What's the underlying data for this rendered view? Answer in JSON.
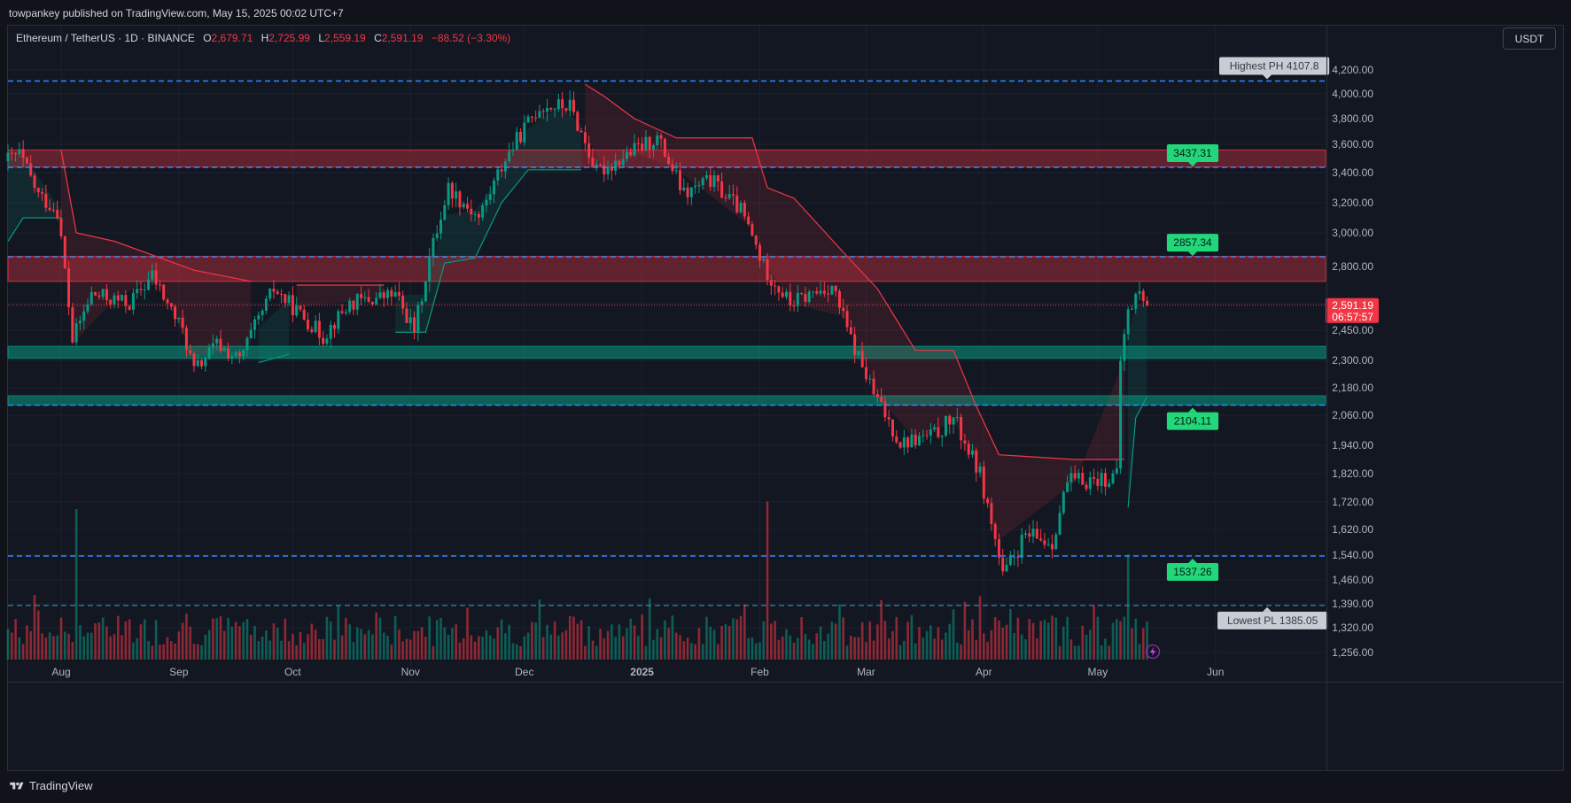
{
  "header": {
    "published": "towpankey published on TradingView.com, May 15, 2025 00:02 UTC+7"
  },
  "legend": {
    "symbol": "Ethereum / TetherUS · 1D · BINANCE",
    "o_label": "O",
    "o": "2,679.71",
    "h_label": "H",
    "h": "2,725.99",
    "l_label": "L",
    "l": "2,559.19",
    "c_label": "C",
    "c": "2,591.19",
    "change": "−88.52 (−3.30%)"
  },
  "currency_button": "USDT",
  "footer": {
    "brand": "TradingView"
  },
  "colors": {
    "background": "#131722",
    "up": "#089981",
    "down": "#f23645",
    "level_line": "#2a8cff",
    "supply_zone": "#f23645",
    "demand_zone": "#089981",
    "label_green": "#22d67a"
  },
  "chart_data": {
    "type": "candlestick",
    "title": "Ethereum / TetherUS · 1D · BINANCE",
    "ylim": [
      1210,
      4320
    ],
    "price_ticks": [
      1256,
      1320,
      1390,
      1460,
      1540,
      1620,
      1720,
      1820,
      1940,
      2060,
      2180,
      2300,
      2450,
      2600,
      2800,
      3000,
      3200,
      3400,
      3600,
      3800,
      4000,
      4200
    ],
    "price_tick_labels": [
      "1,256.00",
      "1,320.00",
      "1,390.00",
      "1,460.00",
      "1,540.00",
      "1,620.00",
      "1,720.00",
      "1,820.00",
      "1,940.00",
      "2,060.00",
      "2,180.00",
      "2,300.00",
      "2,450.00",
      "",
      "2,800.00",
      "3,000.00",
      "3,200.00",
      "3,400.00",
      "3,600.00",
      "3,800.00",
      "4,000.00",
      "4,200.00"
    ],
    "time_labels": [
      {
        "label": "Aug",
        "date": "2024-08-01"
      },
      {
        "label": "Sep",
        "date": "2024-09-01"
      },
      {
        "label": "Oct",
        "date": "2024-10-01"
      },
      {
        "label": "Nov",
        "date": "2024-11-01"
      },
      {
        "label": "Dec",
        "date": "2024-12-01"
      },
      {
        "label": "2025",
        "date": "2025-01-01"
      },
      {
        "label": "Feb",
        "date": "2025-02-01"
      },
      {
        "label": "Mar",
        "date": "2025-03-01"
      },
      {
        "label": "Apr",
        "date": "2025-04-01"
      },
      {
        "label": "May",
        "date": "2025-05-01"
      },
      {
        "label": "Jun",
        "date": "2025-06-01"
      }
    ],
    "xlim": [
      "2024-07-18",
      "2025-06-30"
    ],
    "price_path": [
      [
        "2024-07-18",
        3480
      ],
      [
        "2024-07-22",
        3530
      ],
      [
        "2024-07-27",
        3250
      ],
      [
        "2024-08-01",
        3150
      ],
      [
        "2024-08-05",
        2400
      ],
      [
        "2024-08-10",
        2650
      ],
      [
        "2024-08-20",
        2600
      ],
      [
        "2024-08-26",
        2750
      ],
      [
        "2024-09-03",
        2450
      ],
      [
        "2024-09-06",
        2250
      ],
      [
        "2024-09-12",
        2380
      ],
      [
        "2024-09-18",
        2300
      ],
      [
        "2024-09-27",
        2680
      ],
      [
        "2024-10-01",
        2600
      ],
      [
        "2024-10-10",
        2420
      ],
      [
        "2024-10-17",
        2600
      ],
      [
        "2024-10-29",
        2650
      ],
      [
        "2024-11-03",
        2450
      ],
      [
        "2024-11-06",
        2750
      ],
      [
        "2024-11-12",
        3300
      ],
      [
        "2024-11-20",
        3100
      ],
      [
        "2024-11-27",
        3500
      ],
      [
        "2024-12-06",
        3900
      ],
      [
        "2024-12-14",
        3900
      ],
      [
        "2024-12-21",
        3400
      ],
      [
        "2025-01-06",
        3650
      ],
      [
        "2025-01-13",
        3250
      ],
      [
        "2025-01-20",
        3350
      ],
      [
        "2025-01-28",
        3150
      ],
      [
        "2025-02-03",
        2800
      ],
      [
        "2025-02-10",
        2600
      ],
      [
        "2025-02-21",
        2700
      ],
      [
        "2025-02-26",
        2400
      ],
      [
        "2025-03-04",
        2150
      ],
      [
        "2025-03-11",
        1950
      ],
      [
        "2025-03-20",
        1980
      ],
      [
        "2025-03-25",
        2050
      ],
      [
        "2025-04-01",
        1820
      ],
      [
        "2025-04-07",
        1470
      ],
      [
        "2025-04-13",
        1600
      ],
      [
        "2025-04-20",
        1580
      ],
      [
        "2025-04-24",
        1790
      ],
      [
        "2025-05-01",
        1800
      ],
      [
        "2025-05-07",
        1810
      ],
      [
        "2025-05-08",
        2300
      ],
      [
        "2025-05-10",
        2550
      ],
      [
        "2025-05-13",
        2680
      ],
      [
        "2025-05-14",
        2591.19
      ]
    ],
    "last_price": {
      "value": 2591.19,
      "label": "2,591.19",
      "countdown": "06:57:57"
    },
    "levels": [
      {
        "value": 4107.8,
        "label": "Highest PH 4107.8",
        "kind": "highest",
        "style": "dashed"
      },
      {
        "value": 3437.31,
        "label": "3437.31",
        "kind": "resistance",
        "style": "dashed"
      },
      {
        "value": 2857.34,
        "label": "2857.34",
        "kind": "resistance",
        "style": "dashed"
      },
      {
        "value": 2104.11,
        "label": "2104.11",
        "kind": "support",
        "style": "dashed"
      },
      {
        "value": 1537.26,
        "label": "1537.26",
        "kind": "support",
        "style": "dashed"
      },
      {
        "value": 1385.05,
        "label": "Lowest PL 1385.05",
        "kind": "lowest",
        "style": "dashed-thin"
      }
    ],
    "zones": [
      {
        "kind": "supply",
        "low": 3440,
        "high": 3560
      },
      {
        "kind": "supply",
        "low": 2720,
        "high": 2860
      },
      {
        "kind": "demand",
        "low": 2310,
        "high": 2370
      },
      {
        "kind": "demand",
        "low": 2105,
        "high": 2145
      }
    ],
    "trailing_stop": [
      [
        "2024-07-18",
        2950,
        "up"
      ],
      [
        "2024-07-22",
        3100,
        "up"
      ],
      [
        "2024-08-01",
        3100,
        "up"
      ],
      [
        "2024-08-01",
        3560,
        "down"
      ],
      [
        "2024-08-05",
        3000,
        "down"
      ],
      [
        "2024-08-15",
        2950,
        "down"
      ],
      [
        "2024-08-26",
        2860,
        "down"
      ],
      [
        "2024-09-05",
        2780,
        "down"
      ],
      [
        "2024-09-20",
        2720,
        "down"
      ],
      [
        "2024-09-22",
        2290,
        "up"
      ],
      [
        "2024-09-30",
        2330,
        "up"
      ],
      [
        "2024-10-02",
        2700,
        "down"
      ],
      [
        "2024-10-25",
        2700,
        "down"
      ],
      [
        "2024-10-28",
        2440,
        "up"
      ],
      [
        "2024-11-05",
        2440,
        "up"
      ],
      [
        "2024-11-10",
        2820,
        "up"
      ],
      [
        "2024-11-18",
        2850,
        "up"
      ],
      [
        "2024-11-25",
        3200,
        "up"
      ],
      [
        "2024-12-02",
        3420,
        "up"
      ],
      [
        "2024-12-10",
        3420,
        "up"
      ],
      [
        "2024-12-16",
        3420,
        "up"
      ],
      [
        "2024-12-17",
        4080,
        "down"
      ],
      [
        "2024-12-22",
        3980,
        "down"
      ],
      [
        "2024-12-30",
        3800,
        "down"
      ],
      [
        "2025-01-10",
        3650,
        "down"
      ],
      [
        "2025-01-30",
        3650,
        "down"
      ],
      [
        "2025-02-03",
        3300,
        "down"
      ],
      [
        "2025-02-10",
        3230,
        "down"
      ],
      [
        "2025-02-24",
        2860,
        "down"
      ],
      [
        "2025-03-04",
        2680,
        "down"
      ],
      [
        "2025-03-14",
        2350,
        "down"
      ],
      [
        "2025-03-24",
        2350,
        "down"
      ],
      [
        "2025-03-30",
        2100,
        "down"
      ],
      [
        "2025-04-05",
        1900,
        "down"
      ],
      [
        "2025-04-25",
        1880,
        "down"
      ],
      [
        "2025-05-08",
        1880,
        "down"
      ],
      [
        "2025-05-09",
        1700,
        "up"
      ],
      [
        "2025-05-11",
        2050,
        "up"
      ],
      [
        "2025-05-14",
        2140,
        "up"
      ]
    ],
    "volume_panel": {
      "max_bar_height_px_ref": "relative",
      "spikes": [
        {
          "date": "2024-08-05",
          "rel": 1.0
        },
        {
          "date": "2025-02-03",
          "rel": 1.05
        },
        {
          "date": "2025-05-09",
          "rel": 0.7
        }
      ]
    },
    "grid": true,
    "ylabel": "",
    "xlabel": ""
  }
}
